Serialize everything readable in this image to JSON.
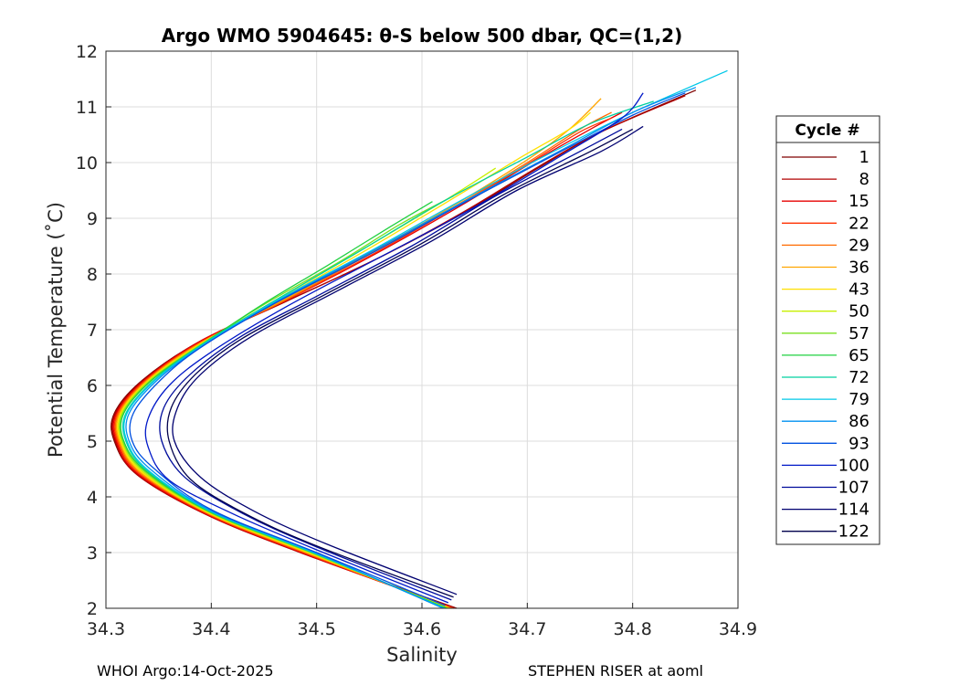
{
  "chart_data": {
    "type": "line",
    "title": "Argo WMO 5904645: θ-S below 500 dbar,  QC=(1,2)",
    "xlabel": "Salinity",
    "ylabel": "Potential Temperature (˚C)",
    "xlim": [
      34.3,
      34.9
    ],
    "ylim": [
      2,
      12
    ],
    "xticks": [
      "34.3",
      "34.4",
      "34.5",
      "34.6",
      "34.7",
      "34.8",
      "34.9"
    ],
    "yticks": [
      "2",
      "3",
      "4",
      "5",
      "6",
      "7",
      "8",
      "9",
      "10",
      "11",
      "12"
    ],
    "grid": true,
    "legend_title": "Cycle #",
    "legend_location": "outside-right",
    "series": [
      {
        "name": "1",
        "color": "#7f0000",
        "points": [
          [
            34.633,
            2.0
          ],
          [
            34.5,
            2.9
          ],
          [
            34.4,
            3.65
          ],
          [
            34.33,
            4.4
          ],
          [
            34.308,
            5.0
          ],
          [
            34.308,
            5.5
          ],
          [
            34.335,
            6.1
          ],
          [
            34.39,
            6.8
          ],
          [
            34.47,
            7.5
          ],
          [
            34.56,
            8.3
          ],
          [
            34.64,
            9.1
          ],
          [
            34.71,
            9.9
          ],
          [
            34.77,
            10.55
          ],
          [
            34.86,
            11.3
          ]
        ]
      },
      {
        "name": "8",
        "color": "#b00000",
        "points": [
          [
            34.632,
            2.0
          ],
          [
            34.5,
            2.89
          ],
          [
            34.4,
            3.64
          ],
          [
            34.33,
            4.39
          ],
          [
            34.309,
            5.0
          ],
          [
            34.309,
            5.5
          ],
          [
            34.336,
            6.1
          ],
          [
            34.39,
            6.79
          ],
          [
            34.47,
            7.5
          ],
          [
            34.56,
            8.3
          ],
          [
            34.64,
            9.12
          ],
          [
            34.71,
            9.92
          ],
          [
            34.77,
            10.55
          ],
          [
            34.85,
            11.2
          ]
        ]
      },
      {
        "name": "15",
        "color": "#e60000",
        "points": [
          [
            34.63,
            2.0
          ],
          [
            34.5,
            2.9
          ],
          [
            34.4,
            3.65
          ],
          [
            34.331,
            4.4
          ],
          [
            34.31,
            5.0
          ],
          [
            34.31,
            5.5
          ],
          [
            34.337,
            6.1
          ],
          [
            34.39,
            6.8
          ],
          [
            34.47,
            7.52
          ],
          [
            34.55,
            8.3
          ],
          [
            34.63,
            9.15
          ],
          [
            34.7,
            9.95
          ],
          [
            34.76,
            10.6
          ],
          [
            34.79,
            10.9
          ]
        ]
      },
      {
        "name": "22",
        "color": "#ff3000",
        "points": [
          [
            34.63,
            2.0
          ],
          [
            34.5,
            2.91
          ],
          [
            34.4,
            3.66
          ],
          [
            34.332,
            4.41
          ],
          [
            34.311,
            5.0
          ],
          [
            34.311,
            5.5
          ],
          [
            34.338,
            6.1
          ],
          [
            34.39,
            6.78
          ],
          [
            34.47,
            7.52
          ],
          [
            34.55,
            8.32
          ],
          [
            34.63,
            9.18
          ],
          [
            34.7,
            9.97
          ],
          [
            34.75,
            10.55
          ],
          [
            34.78,
            10.8
          ]
        ]
      },
      {
        "name": "29",
        "color": "#ff6a00",
        "points": [
          [
            34.628,
            2.0
          ],
          [
            34.5,
            2.92
          ],
          [
            34.4,
            3.67
          ],
          [
            34.333,
            4.42
          ],
          [
            34.312,
            5.0
          ],
          [
            34.312,
            5.5
          ],
          [
            34.339,
            6.1
          ],
          [
            34.39,
            6.77
          ],
          [
            34.47,
            7.53
          ],
          [
            34.55,
            8.35
          ],
          [
            34.63,
            9.2
          ],
          [
            34.7,
            10.0
          ],
          [
            34.75,
            10.6
          ],
          [
            34.78,
            10.9
          ]
        ]
      },
      {
        "name": "36",
        "color": "#ffa500",
        "points": [
          [
            34.627,
            2.0
          ],
          [
            34.5,
            2.93
          ],
          [
            34.4,
            3.68
          ],
          [
            34.334,
            4.42
          ],
          [
            34.313,
            5.0
          ],
          [
            34.313,
            5.5
          ],
          [
            34.34,
            6.1
          ],
          [
            34.39,
            6.76
          ],
          [
            34.47,
            7.55
          ],
          [
            34.55,
            8.37
          ],
          [
            34.63,
            9.23
          ],
          [
            34.7,
            10.05
          ],
          [
            34.74,
            10.6
          ],
          [
            34.77,
            11.15
          ]
        ]
      },
      {
        "name": "43",
        "color": "#ffe000",
        "points": [
          [
            34.626,
            2.0
          ],
          [
            34.5,
            2.94
          ],
          [
            34.4,
            3.69
          ],
          [
            34.335,
            4.43
          ],
          [
            34.314,
            5.0
          ],
          [
            34.314,
            5.5
          ],
          [
            34.341,
            6.1
          ],
          [
            34.39,
            6.75
          ],
          [
            34.46,
            7.5
          ],
          [
            34.54,
            8.35
          ],
          [
            34.62,
            9.25
          ],
          [
            34.69,
            10.05
          ],
          [
            34.74,
            10.6
          ],
          [
            34.76,
            10.9
          ]
        ]
      },
      {
        "name": "50",
        "color": "#c8f000",
        "points": [
          [
            34.625,
            2.0
          ],
          [
            34.5,
            2.95
          ],
          [
            34.4,
            3.7
          ],
          [
            34.336,
            4.44
          ],
          [
            34.315,
            5.0
          ],
          [
            34.315,
            5.5
          ],
          [
            34.342,
            6.1
          ],
          [
            34.39,
            6.74
          ],
          [
            34.46,
            7.52
          ],
          [
            34.54,
            8.4
          ],
          [
            34.62,
            9.3
          ],
          [
            34.67,
            9.9
          ]
        ]
      },
      {
        "name": "57",
        "color": "#7ae020",
        "points": [
          [
            34.624,
            2.0
          ],
          [
            34.5,
            2.96
          ],
          [
            34.4,
            3.71
          ],
          [
            34.337,
            4.45
          ],
          [
            34.316,
            5.0
          ],
          [
            34.316,
            5.5
          ],
          [
            34.343,
            6.1
          ],
          [
            34.39,
            6.73
          ],
          [
            34.45,
            7.45
          ],
          [
            34.52,
            8.2
          ],
          [
            34.58,
            8.9
          ],
          [
            34.63,
            9.4
          ]
        ]
      },
      {
        "name": "65",
        "color": "#20d040",
        "points": [
          [
            34.623,
            2.0
          ],
          [
            34.5,
            2.97
          ],
          [
            34.4,
            3.72
          ],
          [
            34.338,
            4.46
          ],
          [
            34.317,
            5.0
          ],
          [
            34.317,
            5.5
          ],
          [
            34.344,
            6.1
          ],
          [
            34.39,
            6.72
          ],
          [
            34.45,
            7.47
          ],
          [
            34.51,
            8.15
          ],
          [
            34.57,
            8.85
          ],
          [
            34.61,
            9.3
          ]
        ]
      },
      {
        "name": "72",
        "color": "#00d0a0",
        "points": [
          [
            34.622,
            2.0
          ],
          [
            34.5,
            2.97
          ],
          [
            34.4,
            3.73
          ],
          [
            34.339,
            4.47
          ],
          [
            34.319,
            5.0
          ],
          [
            34.319,
            5.5
          ],
          [
            34.346,
            6.1
          ],
          [
            34.39,
            6.72
          ],
          [
            34.46,
            7.52
          ],
          [
            34.54,
            8.4
          ],
          [
            34.62,
            9.3
          ],
          [
            34.7,
            10.1
          ],
          [
            34.76,
            10.7
          ],
          [
            34.82,
            11.1
          ]
        ]
      },
      {
        "name": "79",
        "color": "#00c8e8",
        "points": [
          [
            34.621,
            2.0
          ],
          [
            34.5,
            2.98
          ],
          [
            34.4,
            3.74
          ],
          [
            34.34,
            4.48
          ],
          [
            34.32,
            5.0
          ],
          [
            34.32,
            5.5
          ],
          [
            34.347,
            6.1
          ],
          [
            34.39,
            6.7
          ],
          [
            34.46,
            7.5
          ],
          [
            34.55,
            8.4
          ],
          [
            34.64,
            9.35
          ],
          [
            34.73,
            10.25
          ],
          [
            34.8,
            10.9
          ],
          [
            34.89,
            11.65
          ]
        ]
      },
      {
        "name": "86",
        "color": "#0090f0",
        "points": [
          [
            34.62,
            2.0
          ],
          [
            34.5,
            2.99
          ],
          [
            34.4,
            3.75
          ],
          [
            34.342,
            4.5
          ],
          [
            34.322,
            5.0
          ],
          [
            34.322,
            5.5
          ],
          [
            34.349,
            6.1
          ],
          [
            34.39,
            6.69
          ],
          [
            34.46,
            7.48
          ],
          [
            34.55,
            8.38
          ],
          [
            34.64,
            9.3
          ],
          [
            34.73,
            10.2
          ],
          [
            34.8,
            10.9
          ],
          [
            34.86,
            11.35
          ]
        ]
      },
      {
        "name": "93",
        "color": "#0050e0",
        "points": [
          [
            34.622,
            2.05
          ],
          [
            34.5,
            3.0
          ],
          [
            34.4,
            3.77
          ],
          [
            34.345,
            4.52
          ],
          [
            34.325,
            5.0
          ],
          [
            34.326,
            5.5
          ],
          [
            34.352,
            6.1
          ],
          [
            34.39,
            6.68
          ],
          [
            34.46,
            7.47
          ],
          [
            34.55,
            8.35
          ],
          [
            34.64,
            9.28
          ],
          [
            34.73,
            10.18
          ],
          [
            34.8,
            10.85
          ],
          [
            34.85,
            11.25
          ]
        ]
      },
      {
        "name": "100",
        "color": "#0018c8",
        "points": [
          [
            34.625,
            2.1
          ],
          [
            34.5,
            3.05
          ],
          [
            34.42,
            3.7
          ],
          [
            34.36,
            4.3
          ],
          [
            34.34,
            4.9
          ],
          [
            34.34,
            5.4
          ],
          [
            34.36,
            6.0
          ],
          [
            34.4,
            6.6
          ],
          [
            34.47,
            7.4
          ],
          [
            34.56,
            8.3
          ],
          [
            34.65,
            9.2
          ],
          [
            34.73,
            10.1
          ],
          [
            34.79,
            10.8
          ],
          [
            34.81,
            11.25
          ]
        ]
      },
      {
        "name": "107",
        "color": "#000c9c",
        "points": [
          [
            34.628,
            2.15
          ],
          [
            34.5,
            3.1
          ],
          [
            34.43,
            3.7
          ],
          [
            34.375,
            4.35
          ],
          [
            34.353,
            5.0
          ],
          [
            34.355,
            5.6
          ],
          [
            34.38,
            6.2
          ],
          [
            34.43,
            6.9
          ],
          [
            34.5,
            7.6
          ],
          [
            34.59,
            8.5
          ],
          [
            34.67,
            9.4
          ],
          [
            34.75,
            10.2
          ],
          [
            34.79,
            10.6
          ]
        ]
      },
      {
        "name": "114",
        "color": "#000070",
        "points": [
          [
            34.633,
            2.25
          ],
          [
            34.51,
            3.15
          ],
          [
            34.44,
            3.75
          ],
          [
            34.39,
            4.35
          ],
          [
            34.365,
            5.0
          ],
          [
            34.368,
            5.6
          ],
          [
            34.39,
            6.2
          ],
          [
            34.44,
            6.9
          ],
          [
            34.52,
            7.7
          ],
          [
            34.61,
            8.6
          ],
          [
            34.69,
            9.5
          ],
          [
            34.77,
            10.2
          ],
          [
            34.81,
            10.65
          ]
        ]
      },
      {
        "name": "122",
        "color": "#00004c",
        "points": [
          [
            34.63,
            2.2
          ],
          [
            34.5,
            3.12
          ],
          [
            34.43,
            3.72
          ],
          [
            34.38,
            4.32
          ],
          [
            34.36,
            5.0
          ],
          [
            34.362,
            5.6
          ],
          [
            34.385,
            6.2
          ],
          [
            34.43,
            6.85
          ],
          [
            34.51,
            7.65
          ],
          [
            34.6,
            8.55
          ],
          [
            34.68,
            9.45
          ],
          [
            34.76,
            10.2
          ],
          [
            34.8,
            10.6
          ]
        ]
      }
    ]
  },
  "footer": {
    "left": "WHOI Argo:14-Oct-2025",
    "right": "STEPHEN RISER at aoml"
  }
}
